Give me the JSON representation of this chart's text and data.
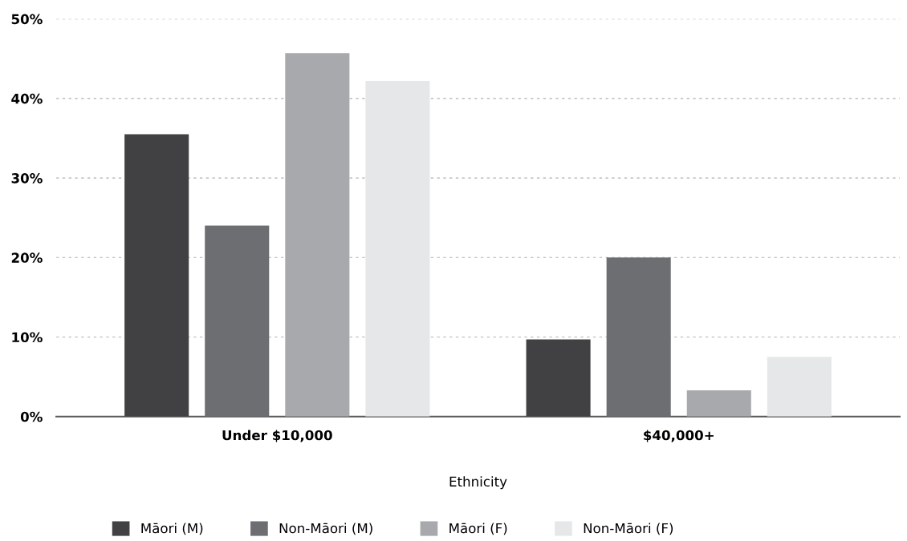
{
  "chart_data": {
    "type": "bar",
    "xlabel": "Ethnicity",
    "categories": [
      "Under $10,000",
      "$40,000+"
    ],
    "series": [
      {
        "name": "Māori (M)",
        "color": "#414042",
        "values": [
          35.5,
          9.7
        ]
      },
      {
        "name": "Non-Māori (M)",
        "color": "#6d6e71",
        "values": [
          24.0,
          20.0
        ]
      },
      {
        "name": "Māori (F)",
        "color": "#a7a9ac",
        "values": [
          45.7,
          3.3
        ]
      },
      {
        "name": "Non-Māori (F)",
        "color": "#e6e7e8",
        "values": [
          42.2,
          7.5
        ]
      }
    ],
    "ylim": [
      0,
      50
    ],
    "yticks": [
      {
        "value": 0,
        "label": "0%"
      },
      {
        "value": 10,
        "label": "10%"
      },
      {
        "value": 20,
        "label": "20%"
      },
      {
        "value": 30,
        "label": "30%"
      },
      {
        "value": 40,
        "label": "40%"
      },
      {
        "value": 50,
        "label": "50%"
      }
    ],
    "grid": "y",
    "legend": "bottom"
  }
}
